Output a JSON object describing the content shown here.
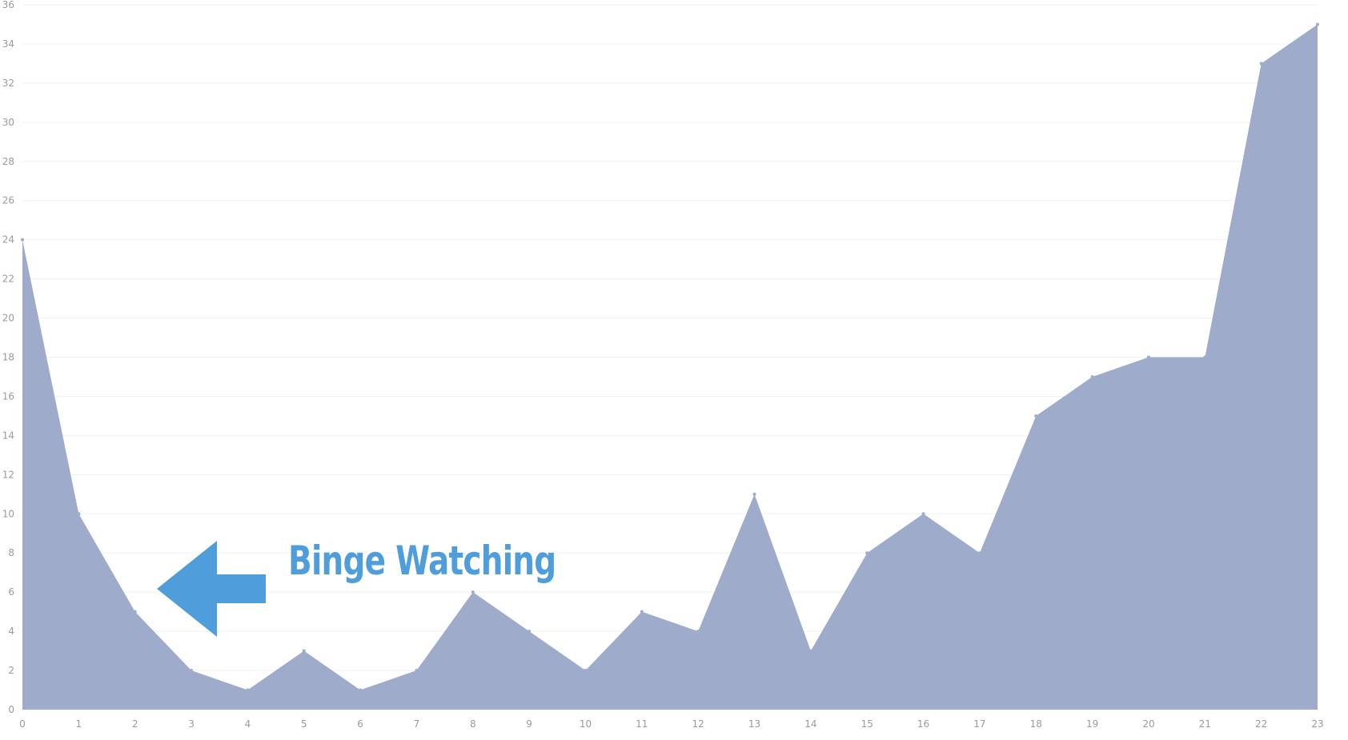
{
  "colors": {
    "area_fill": "#9eabcb",
    "annotation": "#4f9edb",
    "grid": "#f1f1f1",
    "tick_text": "#9a9a9a"
  },
  "annotation": {
    "text": "Binge Watching",
    "icon": "left-arrow-icon"
  },
  "chart_data": {
    "type": "area",
    "title": "",
    "xlabel": "",
    "ylabel": "",
    "x": [
      0,
      1,
      2,
      3,
      4,
      5,
      6,
      7,
      8,
      9,
      10,
      11,
      12,
      13,
      14,
      15,
      16,
      17,
      18,
      19,
      20,
      21,
      22,
      23
    ],
    "values": [
      24,
      10,
      5,
      2,
      1,
      3,
      1,
      2,
      6,
      4,
      2,
      5,
      4,
      11,
      3,
      8,
      10,
      8,
      15,
      17,
      18,
      18,
      33,
      35
    ],
    "xlim": [
      0,
      23
    ],
    "ylim": [
      0,
      36
    ],
    "x_ticks": [
      "0",
      "1",
      "2",
      "3",
      "4",
      "5",
      "6",
      "7",
      "8",
      "9",
      "10",
      "11",
      "12",
      "13",
      "14",
      "15",
      "16",
      "17",
      "18",
      "19",
      "20",
      "21",
      "22",
      "23"
    ],
    "y_ticks": [
      "0",
      "2",
      "4",
      "6",
      "8",
      "10",
      "12",
      "14",
      "16",
      "18",
      "20",
      "22",
      "24",
      "26",
      "28",
      "30",
      "32",
      "34",
      "36"
    ],
    "grid": true,
    "legend": "none"
  }
}
